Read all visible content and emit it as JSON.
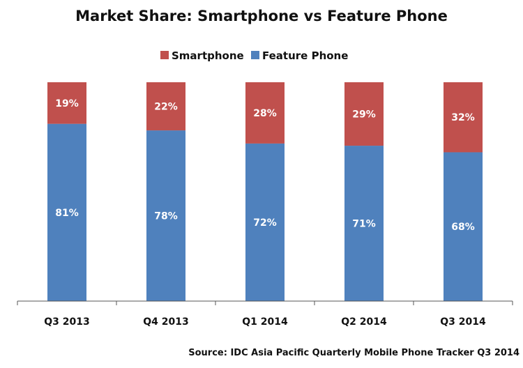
{
  "chart_data": {
    "type": "bar",
    "stacked": true,
    "title": "Market Share: Smartphone vs Feature Phone",
    "categories": [
      "Q3 2013",
      "Q4 2013",
      "Q1 2014",
      "Q2 2014",
      "Q3 2014"
    ],
    "series": [
      {
        "name": "Feature Phone",
        "color": "#4f81bd",
        "values": [
          81,
          78,
          72,
          71,
          68
        ],
        "labels": [
          "81%",
          "78%",
          "72%",
          "71%",
          "68%"
        ]
      },
      {
        "name": "Smartphone",
        "color": "#c0504d",
        "values": [
          19,
          22,
          28,
          29,
          32
        ],
        "labels": [
          "19%",
          "22%",
          "28%",
          "29%",
          "32%"
        ]
      }
    ],
    "legend": {
      "position": "top",
      "order": [
        "Smartphone",
        "Feature Phone"
      ]
    },
    "ylim": [
      0,
      100
    ],
    "source": "Source: IDC Asia Pacific Quarterly Mobile Phone Tracker Q3 2014"
  }
}
